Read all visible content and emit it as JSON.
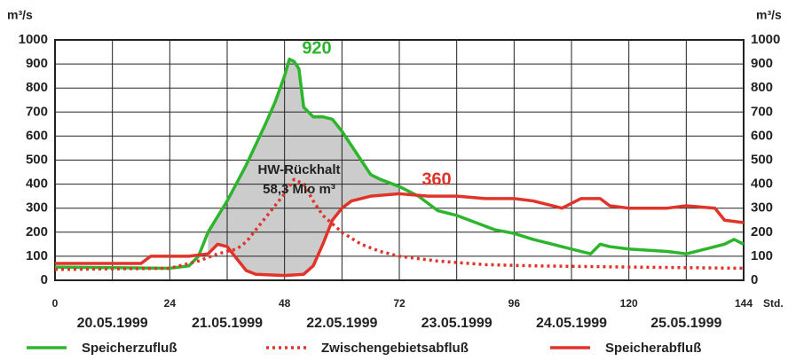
{
  "chart_data": {
    "type": "line",
    "y_unit_left": "m³/s",
    "y_unit_right": "m³/s",
    "x_unit": "Std.",
    "xlim": [
      0,
      144
    ],
    "xticks": [
      0,
      24,
      48,
      72,
      96,
      120,
      144
    ],
    "xminor": [
      12,
      36,
      60,
      84,
      108,
      132
    ],
    "ylim": [
      0,
      1000
    ],
    "yticks": [
      0,
      100,
      200,
      300,
      400,
      500,
      600,
      700,
      800,
      900,
      1000
    ],
    "grid": true,
    "dates": [
      "20.05.1999",
      "21.05.1999",
      "22.05.1999",
      "23.05.1999",
      "24.05.1999",
      "25.05.1999"
    ],
    "shade_color": "#cccccc",
    "series": [
      {
        "name": "Speicherzufluß",
        "color": "#2db52d",
        "style": "solid",
        "x": [
          0,
          24,
          28,
          30,
          32,
          36,
          40,
          44,
          46,
          48,
          49,
          50,
          51,
          52,
          54,
          56,
          58,
          60,
          62,
          64,
          66,
          68,
          72,
          76,
          80,
          84,
          88,
          92,
          96,
          100,
          104,
          108,
          112,
          114,
          116,
          120,
          124,
          128,
          132,
          136,
          140,
          142,
          144
        ],
        "values": [
          55,
          50,
          60,
          100,
          200,
          330,
          480,
          650,
          740,
          850,
          920,
          910,
          880,
          720,
          680,
          680,
          670,
          620,
          560,
          500,
          440,
          420,
          390,
          350,
          290,
          270,
          240,
          210,
          195,
          170,
          150,
          130,
          110,
          150,
          140,
          130,
          125,
          120,
          110,
          130,
          150,
          170,
          150
        ]
      },
      {
        "name": "Zwischengebietsabfluß",
        "color": "#e0342a",
        "style": "dotted",
        "x": [
          0,
          24,
          30,
          34,
          38,
          40,
          44,
          48,
          50,
          52,
          54,
          56,
          60,
          64,
          68,
          72,
          80,
          90,
          100,
          120,
          144
        ],
        "values": [
          45,
          50,
          80,
          110,
          130,
          160,
          260,
          360,
          420,
          400,
          330,
          270,
          200,
          150,
          120,
          100,
          80,
          65,
          60,
          55,
          50
        ]
      },
      {
        "name": "Speicherabfluß",
        "color": "#e0342a",
        "style": "solid",
        "x": [
          0,
          18,
          20,
          28,
          32,
          34,
          36,
          38,
          40,
          42,
          48,
          52,
          54,
          56,
          58,
          60,
          62,
          66,
          72,
          78,
          84,
          90,
          96,
          100,
          104,
          106,
          110,
          114,
          116,
          120,
          128,
          132,
          138,
          140,
          144
        ],
        "values": [
          70,
          70,
          100,
          100,
          110,
          150,
          140,
          90,
          40,
          25,
          20,
          25,
          60,
          150,
          250,
          300,
          330,
          350,
          360,
          350,
          350,
          340,
          340,
          330,
          310,
          300,
          340,
          340,
          310,
          300,
          300,
          310,
          300,
          250,
          240
        ]
      }
    ],
    "annotations": [
      {
        "text": "920",
        "color": "#2db52d"
      },
      {
        "text": "360",
        "color": "#e0342a"
      },
      {
        "text": "HW-Rückhalt",
        "color": "#222222"
      },
      {
        "text": "58,3 Mio m³",
        "color": "#222222"
      }
    ]
  }
}
